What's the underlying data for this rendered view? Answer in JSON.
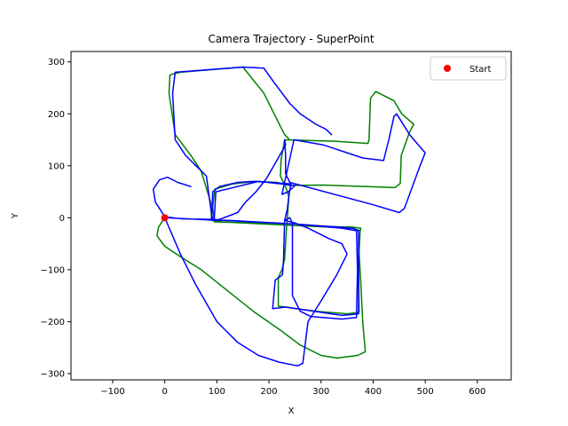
{
  "chart_data": {
    "type": "line",
    "title": "Camera Trajectory - SuperPoint",
    "xlabel": "X",
    "ylabel": "Y",
    "xlim": [
      -180,
      665
    ],
    "ylim": [
      -312,
      320
    ],
    "xticks": [
      -100,
      0,
      100,
      200,
      300,
      400,
      500,
      600
    ],
    "yticks": [
      -300,
      -200,
      -100,
      0,
      100,
      200,
      300
    ],
    "grid": false,
    "legend": {
      "position": "top-right",
      "entries": [
        "Start"
      ]
    },
    "start_point": {
      "x": 0,
      "y": 0,
      "color": "#ff0000"
    },
    "series": [
      {
        "color": "#008000",
        "points": [
          [
            0,
            0
          ],
          [
            -12,
            -18
          ],
          [
            -15,
            -35
          ],
          [
            0,
            -55
          ],
          [
            30,
            -75
          ],
          [
            70,
            -100
          ],
          [
            120,
            -140
          ],
          [
            170,
            -180
          ],
          [
            220,
            -215
          ],
          [
            260,
            -245
          ],
          [
            300,
            -265
          ],
          [
            330,
            -270
          ],
          [
            370,
            -265
          ],
          [
            385,
            -258
          ],
          [
            380,
            -200
          ],
          [
            376,
            -120
          ],
          [
            372,
            -50
          ],
          [
            376,
            -20
          ],
          [
            360,
            -18
          ],
          [
            250,
            -15
          ],
          [
            170,
            -10
          ],
          [
            95,
            -8
          ],
          [
            92,
            20
          ],
          [
            96,
            55
          ],
          [
            130,
            65
          ],
          [
            175,
            70
          ],
          [
            215,
            68
          ],
          [
            240,
            62
          ],
          [
            300,
            63
          ],
          [
            390,
            60
          ],
          [
            442,
            58
          ],
          [
            452,
            66
          ],
          [
            454,
            120
          ],
          [
            470,
            165
          ],
          [
            478,
            180
          ],
          [
            455,
            200
          ],
          [
            440,
            225
          ],
          [
            405,
            243
          ],
          [
            395,
            230
          ],
          [
            392,
            150
          ],
          [
            390,
            143
          ],
          [
            330,
            147
          ],
          [
            230,
            150
          ],
          [
            223,
            110
          ],
          [
            222,
            80
          ],
          [
            232,
            60
          ],
          [
            238,
            40
          ],
          [
            236,
            10
          ],
          [
            233,
            -30
          ],
          [
            230,
            -80
          ],
          [
            225,
            -100
          ],
          [
            218,
            -115
          ],
          [
            218,
            -170
          ],
          [
            290,
            -180
          ],
          [
            350,
            -185
          ],
          [
            373,
            -182
          ],
          [
            372,
            -90
          ],
          [
            375,
            -25
          ],
          [
            360,
            -20
          ],
          [
            250,
            -15
          ],
          [
            110,
            -8
          ],
          [
            90,
            -5
          ],
          [
            88,
            30
          ],
          [
            70,
            90
          ],
          [
            50,
            120
          ],
          [
            20,
            160
          ],
          [
            8,
            240
          ],
          [
            10,
            275
          ],
          [
            30,
            280
          ],
          [
            150,
            290
          ],
          [
            190,
            240
          ],
          [
            210,
            200
          ],
          [
            230,
            160
          ],
          [
            240,
            150
          ]
        ]
      },
      {
        "color": "#0000ff",
        "points": [
          [
            50,
            60
          ],
          [
            25,
            68
          ],
          [
            5,
            78
          ],
          [
            -10,
            73
          ],
          [
            -22,
            55
          ],
          [
            -18,
            30
          ],
          [
            0,
            2
          ],
          [
            30,
            -2
          ],
          [
            80,
            -3
          ],
          [
            90,
            -3
          ],
          [
            92,
            50
          ],
          [
            105,
            60
          ],
          [
            140,
            68
          ],
          [
            170,
            70
          ],
          [
            200,
            68
          ],
          [
            242,
            65
          ],
          [
            238,
            40
          ],
          [
            235,
            15
          ],
          [
            230,
            -5
          ],
          [
            240,
            0
          ],
          [
            245,
            -10
          ],
          [
            245,
            -150
          ],
          [
            260,
            -180
          ],
          [
            280,
            -190
          ],
          [
            340,
            -195
          ],
          [
            368,
            -192
          ],
          [
            370,
            -100
          ],
          [
            368,
            -25
          ],
          [
            340,
            -20
          ],
          [
            250,
            -12
          ],
          [
            110,
            -5
          ],
          [
            95,
            -3
          ],
          [
            98,
            50
          ],
          [
            180,
            70
          ],
          [
            250,
            62
          ],
          [
            237,
            50
          ],
          [
            225,
            45
          ],
          [
            248,
            150
          ],
          [
            305,
            140
          ],
          [
            380,
            115
          ],
          [
            420,
            110
          ],
          [
            430,
            150
          ],
          [
            440,
            195
          ],
          [
            445,
            200
          ],
          [
            470,
            160
          ],
          [
            500,
            125
          ],
          [
            490,
            100
          ],
          [
            460,
            18
          ],
          [
            450,
            10
          ],
          [
            400,
            25
          ],
          [
            240,
            68
          ],
          [
            232,
            85
          ],
          [
            232,
            120
          ],
          [
            230,
            150
          ],
          [
            232,
            140
          ],
          [
            215,
            110
          ],
          [
            195,
            75
          ],
          [
            175,
            50
          ],
          [
            155,
            30
          ],
          [
            140,
            10
          ],
          [
            100,
            -5
          ],
          [
            0,
            0
          ],
          [
            30,
            -70
          ],
          [
            60,
            -130
          ],
          [
            100,
            -200
          ],
          [
            140,
            -240
          ],
          [
            180,
            -265
          ],
          [
            220,
            -278
          ],
          [
            255,
            -285
          ],
          [
            265,
            -280
          ],
          [
            275,
            -200
          ],
          [
            300,
            -160
          ],
          [
            330,
            -110
          ],
          [
            350,
            -70
          ],
          [
            340,
            -50
          ],
          [
            315,
            -40
          ],
          [
            275,
            -20
          ],
          [
            250,
            -10
          ],
          [
            230,
            -5
          ],
          [
            228,
            -80
          ],
          [
            226,
            -110
          ],
          [
            212,
            -120
          ],
          [
            207,
            -175
          ],
          [
            232,
            -172
          ],
          [
            340,
            -188
          ],
          [
            372,
            -185
          ],
          [
            372,
            -25
          ],
          [
            360,
            -20
          ],
          [
            250,
            -12
          ],
          [
            120,
            -5
          ],
          [
            92,
            -5
          ],
          [
            88,
            20
          ],
          [
            80,
            80
          ],
          [
            60,
            100
          ],
          [
            40,
            120
          ],
          [
            20,
            150
          ],
          [
            15,
            240
          ],
          [
            20,
            280
          ],
          [
            150,
            290
          ],
          [
            190,
            288
          ],
          [
            210,
            260
          ],
          [
            240,
            220
          ],
          [
            260,
            200
          ],
          [
            290,
            180
          ],
          [
            310,
            170
          ],
          [
            320,
            160
          ]
        ]
      }
    ]
  }
}
